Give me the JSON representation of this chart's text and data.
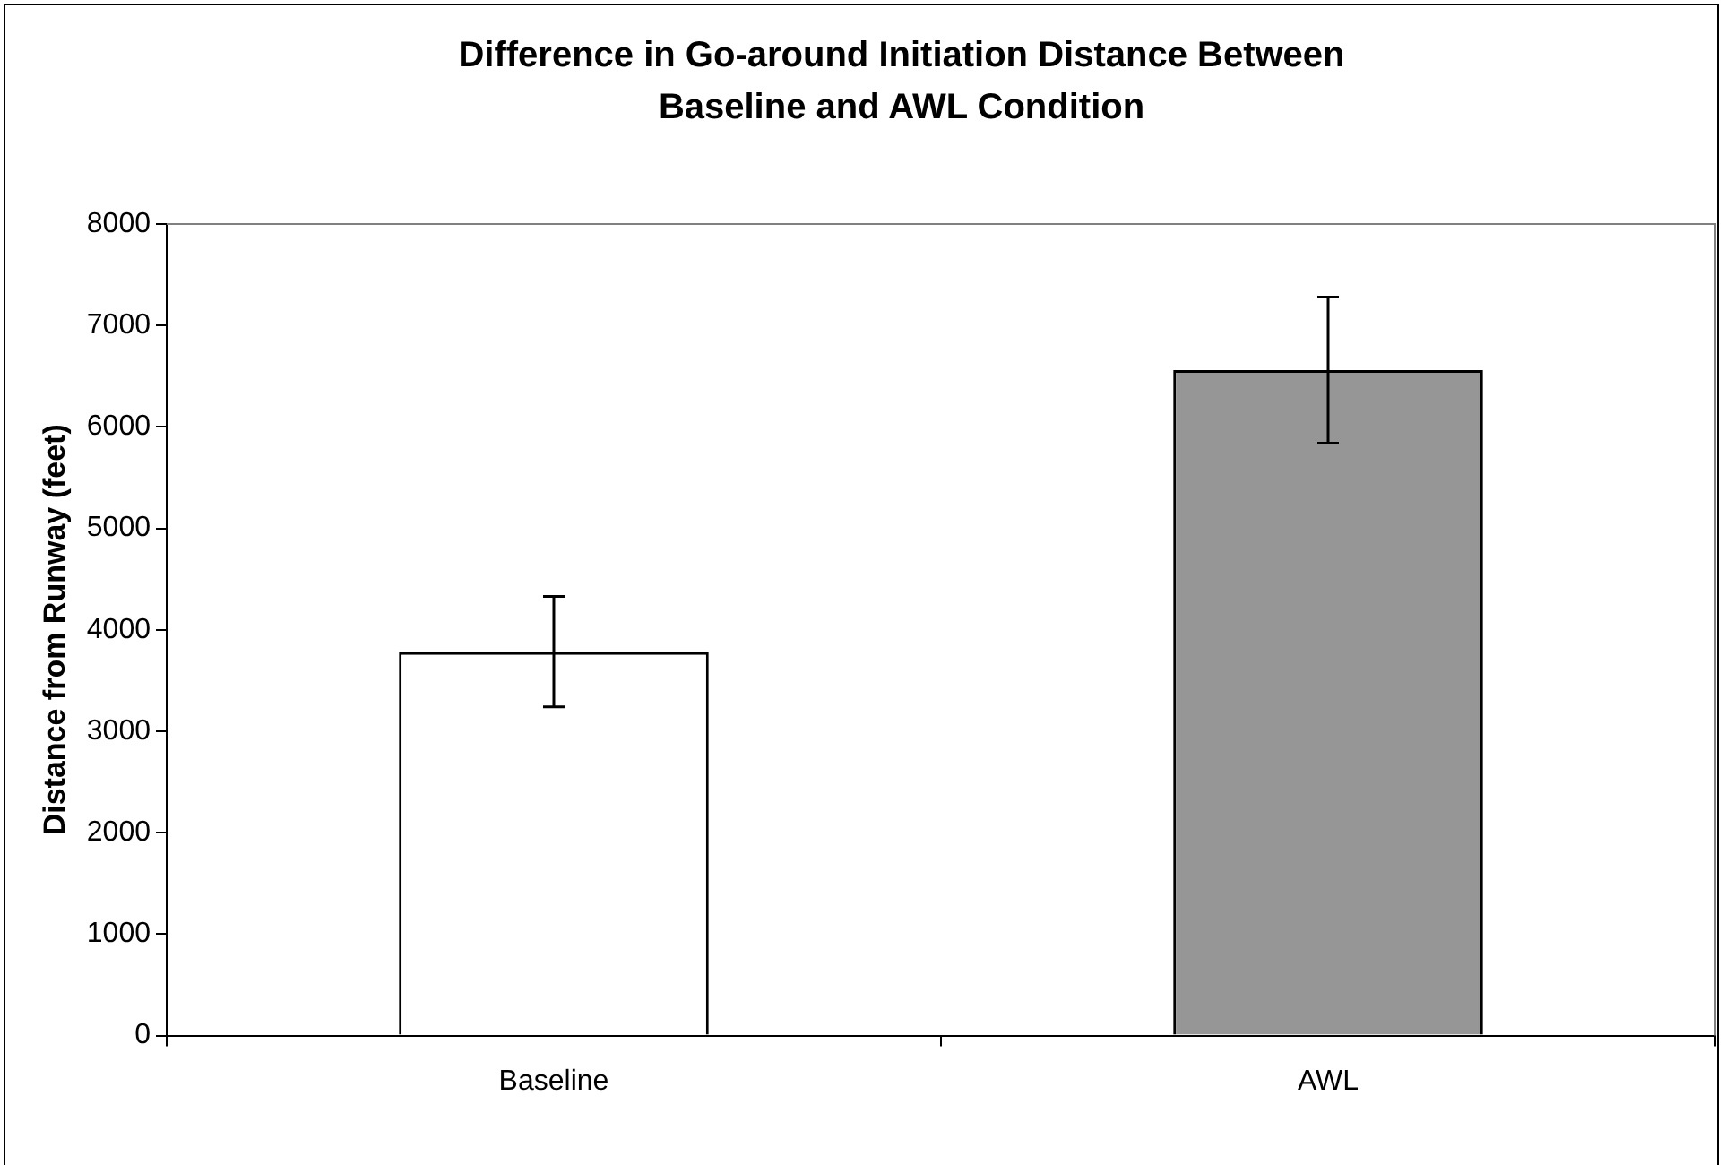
{
  "chart_data": {
    "type": "bar",
    "title": "Difference in Go-around Initiation Distance Between Baseline and AWL Condition",
    "ylabel": "Distance from Runway (feet)",
    "categories": [
      "Baseline",
      "AWL"
    ],
    "values": [
      3780,
      6560
    ],
    "colors": [
      "#ffffff",
      "#969696"
    ],
    "errors": [
      [
        3240,
        4330
      ],
      [
        5840,
        7280
      ]
    ],
    "ylim": [
      0,
      8000
    ],
    "yticks": [
      0,
      1000,
      2000,
      3000,
      4000,
      5000,
      6000,
      7000,
      8000
    ],
    "grid": false,
    "legend": false
  }
}
